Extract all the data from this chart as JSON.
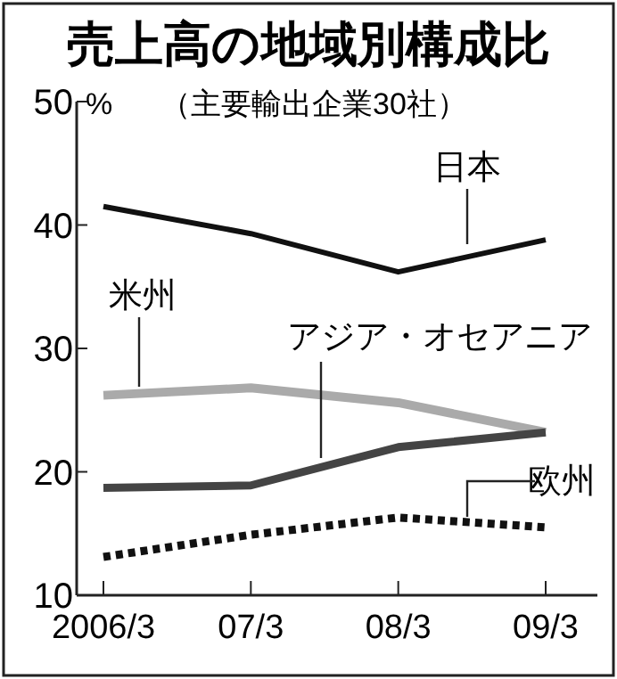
{
  "chart_data": {
    "type": "line",
    "title": "売上高の地域別構成比",
    "subtitle": "（主要輸出企業30社）",
    "ylabel": "%",
    "categories": [
      "2006/3",
      "07/3",
      "08/3",
      "09/3"
    ],
    "ylim": [
      10,
      50
    ],
    "yticks": [
      10,
      20,
      30,
      40,
      50
    ],
    "grid": false,
    "legend": false,
    "series": [
      {
        "name": "日本",
        "color": "#111111",
        "line_style": "solid",
        "values": [
          41.5,
          39.3,
          36.2,
          38.8
        ]
      },
      {
        "name": "米州",
        "color": "#aaaaaa",
        "line_style": "solid",
        "values": [
          26.2,
          26.8,
          25.6,
          23.2
        ]
      },
      {
        "name": "アジア・オセアニア",
        "color": "#444444",
        "line_style": "solid",
        "values": [
          18.7,
          18.9,
          22.0,
          23.2
        ]
      },
      {
        "name": "欧州",
        "color": "#111111",
        "line_style": "dotted",
        "values": [
          13.1,
          14.9,
          16.3,
          15.5
        ]
      }
    ]
  }
}
